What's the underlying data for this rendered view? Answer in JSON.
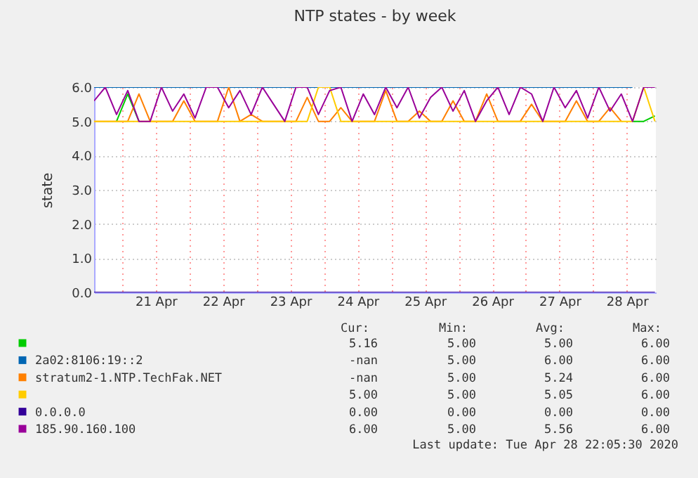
{
  "chart_data": {
    "type": "line",
    "title": "NTP states - by week",
    "ylabel": "state",
    "x": [
      "2020-04-20T14:00",
      "2020-04-20T18:00",
      "2020-04-20T22:00",
      "2020-04-21T02:00",
      "2020-04-21T06:00",
      "2020-04-21T10:00",
      "2020-04-21T14:00",
      "2020-04-21T18:00",
      "2020-04-21T22:00",
      "2020-04-22T02:00",
      "2020-04-22T06:00",
      "2020-04-22T10:00",
      "2020-04-22T14:00",
      "2020-04-22T18:00",
      "2020-04-22T22:00",
      "2020-04-23T02:00",
      "2020-04-23T06:00",
      "2020-04-23T10:00",
      "2020-04-23T14:00",
      "2020-04-23T18:00",
      "2020-04-23T22:00",
      "2020-04-24T02:00",
      "2020-04-24T06:00",
      "2020-04-24T10:00",
      "2020-04-24T14:00",
      "2020-04-24T18:00",
      "2020-04-24T22:00",
      "2020-04-25T02:00",
      "2020-04-25T06:00",
      "2020-04-25T10:00",
      "2020-04-25T14:00",
      "2020-04-25T18:00",
      "2020-04-25T22:00",
      "2020-04-26T02:00",
      "2020-04-26T06:00",
      "2020-04-26T10:00",
      "2020-04-26T14:00",
      "2020-04-26T18:00",
      "2020-04-26T22:00",
      "2020-04-27T02:00",
      "2020-04-27T06:00",
      "2020-04-27T10:00",
      "2020-04-27T14:00",
      "2020-04-27T18:00",
      "2020-04-27T22:00",
      "2020-04-28T02:00",
      "2020-04-28T06:00",
      "2020-04-28T10:00",
      "2020-04-28T14:00",
      "2020-04-28T18:00",
      "2020-04-28T22:00"
    ],
    "series": [
      {
        "color": "#00cc00",
        "values": [
          null,
          null,
          5,
          5.8,
          5,
          null,
          null,
          null,
          null,
          null,
          null,
          null,
          null,
          null,
          null,
          null,
          null,
          null,
          null,
          null,
          null,
          null,
          null,
          null,
          null,
          null,
          null,
          null,
          null,
          null,
          null,
          null,
          null,
          null,
          null,
          null,
          null,
          null,
          null,
          null,
          null,
          null,
          null,
          null,
          null,
          null,
          null,
          null,
          5,
          5,
          5.16
        ]
      },
      {
        "name": "2a02:8106:19::2",
        "color": "#0066b3",
        "values": [
          6,
          6,
          6,
          6,
          6,
          6,
          6,
          6,
          6,
          6,
          6,
          6,
          6,
          6,
          6,
          6,
          6,
          6,
          6,
          6,
          6,
          6,
          6,
          6,
          6,
          6,
          6,
          6,
          6,
          6,
          6,
          6,
          6,
          6,
          6,
          6,
          6,
          6,
          6,
          6,
          6,
          6,
          6,
          6,
          6,
          6,
          6,
          6,
          6,
          null,
          null
        ]
      },
      {
        "name": "stratum2-1.NTP.TechFak.NET",
        "color": "#ff8000",
        "values": [
          5,
          5,
          5,
          5,
          5.8,
          5,
          5,
          5,
          5.6,
          5,
          5,
          5,
          6,
          5,
          5.2,
          5,
          5,
          5,
          5,
          5.7,
          5,
          5,
          5.4,
          5,
          5,
          5,
          5.9,
          5,
          5,
          5.3,
          5,
          5,
          5.6,
          5,
          5,
          5.8,
          5,
          5,
          5,
          5.5,
          5,
          5,
          5,
          5.6,
          5,
          5,
          5.4,
          5,
          null,
          null,
          null
        ]
      },
      {
        "color": "#ffcc00",
        "values": [
          5,
          5,
          5,
          5,
          5,
          5,
          5,
          5,
          5,
          5,
          5,
          5,
          5,
          5,
          5,
          5,
          5,
          5,
          5,
          5,
          6,
          6,
          5,
          5,
          5,
          5,
          5,
          5,
          5,
          5,
          5,
          5,
          5,
          5,
          5,
          5,
          5,
          5,
          5,
          5,
          5,
          5,
          5,
          5,
          5,
          5,
          5,
          5,
          5,
          6,
          5
        ]
      },
      {
        "name": "0.0.0.0",
        "color": "#330099",
        "values": [
          0,
          0,
          0,
          0,
          0,
          0,
          0,
          0,
          0,
          0,
          0,
          0,
          0,
          0,
          0,
          0,
          0,
          0,
          0,
          0,
          0,
          0,
          0,
          0,
          0,
          0,
          0,
          0,
          0,
          0,
          0,
          0,
          0,
          0,
          0,
          0,
          0,
          0,
          0,
          0,
          0,
          0,
          0,
          0,
          0,
          0,
          0,
          0,
          0,
          0,
          0
        ]
      },
      {
        "name": "185.90.160.100",
        "color": "#990099",
        "values": [
          5.6,
          6,
          5.2,
          5.9,
          5,
          5,
          6,
          5.3,
          5.8,
          5.1,
          6,
          6,
          5.4,
          5.9,
          5.2,
          6,
          5.5,
          5,
          6,
          6,
          5.2,
          5.9,
          6,
          5,
          5.8,
          5.2,
          6,
          5.4,
          6,
          5.1,
          5.7,
          6,
          5.3,
          5.9,
          5,
          5.6,
          6,
          5.2,
          6,
          5.8,
          5,
          6,
          5.4,
          5.9,
          5.1,
          6,
          5.3,
          5.8,
          5,
          6,
          6
        ]
      }
    ],
    "xlim": [
      "2020-04-20T14:00",
      "2020-04-28T22:20"
    ],
    "xticks": [
      {
        "value": "2020-04-21T00:00",
        "label": null
      },
      {
        "value": "2020-04-21T12:00",
        "label": "21 Apr"
      },
      {
        "value": "2020-04-22T00:00",
        "label": null
      },
      {
        "value": "2020-04-22T12:00",
        "label": "22 Apr"
      },
      {
        "value": "2020-04-23T00:00",
        "label": null
      },
      {
        "value": "2020-04-23T12:00",
        "label": "23 Apr"
      },
      {
        "value": "2020-04-24T00:00",
        "label": null
      },
      {
        "value": "2020-04-24T12:00",
        "label": "24 Apr"
      },
      {
        "value": "2020-04-25T00:00",
        "label": null
      },
      {
        "value": "2020-04-25T12:00",
        "label": "25 Apr"
      },
      {
        "value": "2020-04-26T00:00",
        "label": null
      },
      {
        "value": "2020-04-26T12:00",
        "label": "26 Apr"
      },
      {
        "value": "2020-04-27T00:00",
        "label": null
      },
      {
        "value": "2020-04-27T12:00",
        "label": "27 Apr"
      },
      {
        "value": "2020-04-28T00:00",
        "label": null
      },
      {
        "value": "2020-04-28T12:00",
        "label": "28 Apr"
      }
    ],
    "ylim": [
      0,
      6
    ],
    "yticks": [
      {
        "value": 0,
        "label": "0.0"
      },
      {
        "value": 1,
        "label": "1.0"
      },
      {
        "value": 2,
        "label": "2.0"
      },
      {
        "value": 3,
        "label": "3.0"
      },
      {
        "value": 4,
        "label": "4.0"
      },
      {
        "value": 5,
        "label": "5.0"
      },
      {
        "value": 6,
        "label": "6.0"
      }
    ],
    "grid": true,
    "legend": "bottom",
    "annotations": [
      "Cur:",
      "Min:",
      "Avg:",
      "Max:",
      "5.16",
      "5.00",
      "5.00",
      "6.00",
      "-nan",
      "5.00",
      "6.00",
      "6.00",
      "-nan",
      "5.00",
      "5.24",
      "6.00",
      "5.00",
      "5.00",
      "5.05",
      "6.00",
      "0.00",
      "0.00",
      "0.00",
      "0.00",
      "6.00",
      "5.00",
      "5.56",
      "6.00",
      "Last update: Tue Apr 28 22:05:30 2020"
    ]
  }
}
